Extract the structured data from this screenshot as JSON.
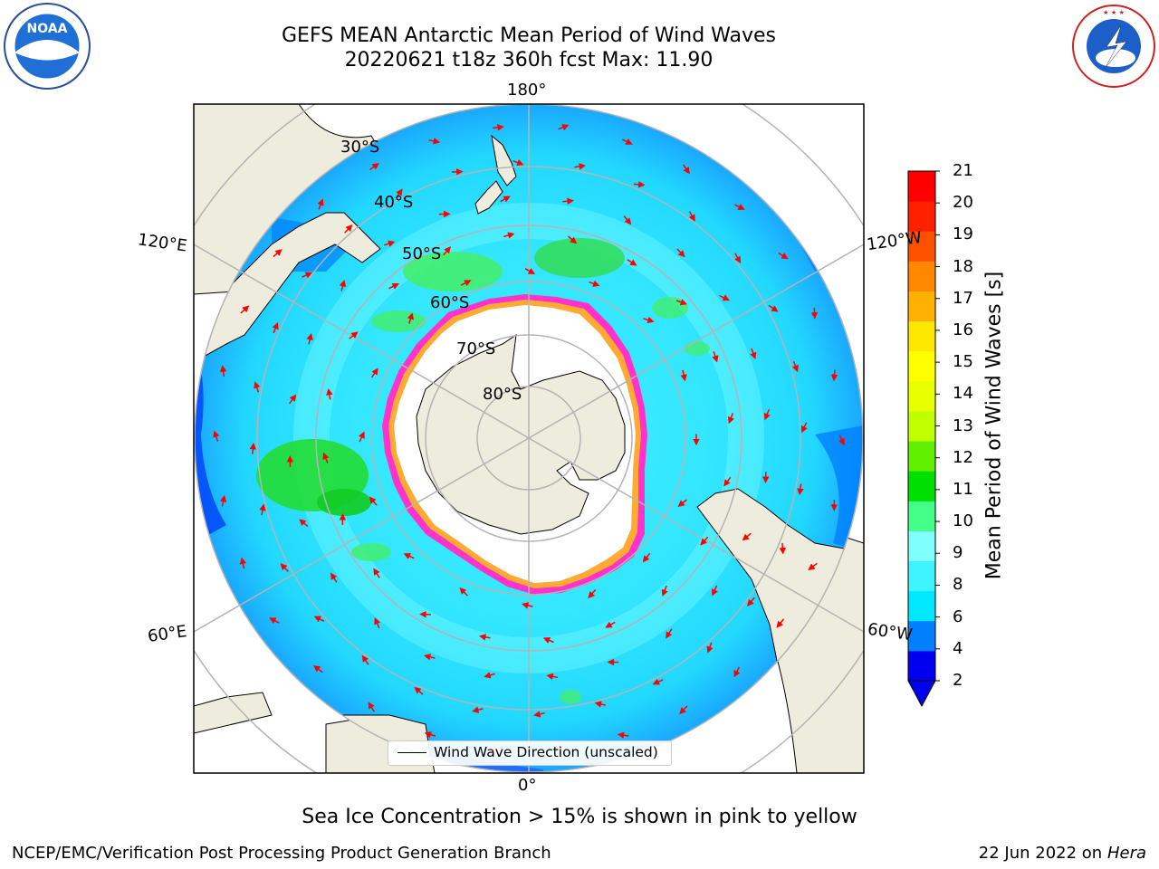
{
  "header": {
    "title_line1": "GEFS MEAN Antarctic Mean Period of Wind Waves",
    "title_line2": "20220621 t18z 360h fcst   Max: 11.90"
  },
  "map": {
    "projection": "south-polar stereographic",
    "longitude_labels": {
      "top": "180°",
      "bottom": "0°",
      "upper_left": "120°E",
      "upper_right": "120°W",
      "lower_left": "60°E",
      "lower_right": "60°W"
    },
    "latitude_labels": [
      "30°S",
      "40°S",
      "50°S",
      "60°S",
      "70°S",
      "80°S"
    ],
    "legend_label": "Wind Wave Direction (unscaled)",
    "colors": {
      "land": "#eeecdc",
      "sea_ice_interior": "#ffffff",
      "sea_ice_edge": [
        "#ff33cc",
        "#ffaa33",
        "#ffff33"
      ],
      "gridline": "#b4b4b4",
      "arrows": "#ff0000"
    }
  },
  "colorbar": {
    "label": "Mean Period of Wind Waves [s]",
    "ticks": [
      "21",
      "20",
      "19",
      "18",
      "17",
      "16",
      "15",
      "14",
      "13",
      "12",
      "11",
      "10",
      "9",
      "8",
      "6",
      "4",
      "2"
    ],
    "colors": [
      "#0000ee",
      "#0080ff",
      "#00e8ff",
      "#40f4ff",
      "#80ffff",
      "#44ff88",
      "#00e000",
      "#60f000",
      "#c0ff00",
      "#e8ff00",
      "#ffff00",
      "#ffe800",
      "#ffb000",
      "#ff8800",
      "#ff5000",
      "#ff2000",
      "#ff0000"
    ]
  },
  "footer": {
    "note": "Sea Ice Concentration > 15% is shown in pink to yellow",
    "credit_left": "NCEP/EMC/Verification Post Processing Product Generation Branch",
    "credit_date": "22 Jun 2022 on",
    "credit_host": "Hera"
  },
  "logos": {
    "left": {
      "icon": "noaa-logo",
      "text": "NOAA"
    },
    "right": {
      "icon": "nws-logo",
      "text": "NATIONAL WEATHER SERVICE"
    }
  }
}
